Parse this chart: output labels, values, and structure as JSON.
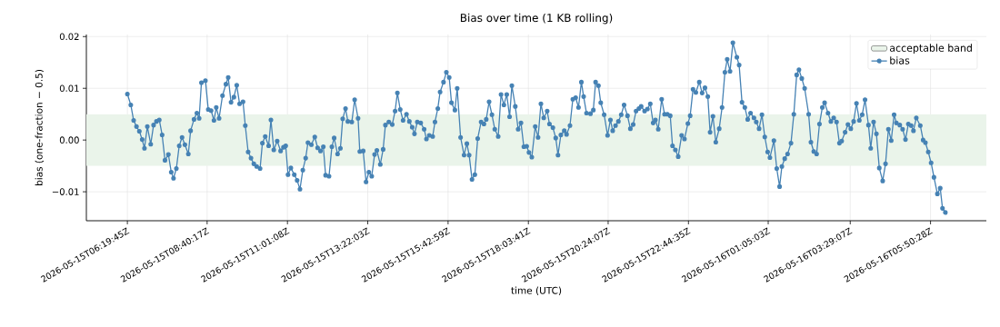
{
  "chart_data": {
    "type": "line",
    "title": "Bias over time (1 KB rolling)",
    "xlabel": "time (UTC)",
    "ylabel": "bias (one-fraction − 0.5)",
    "xlim": [
      "2026-05-15T05:08",
      "2026-05-16T07:28"
    ],
    "ylim": [
      -0.0156,
      0.0204
    ],
    "xticks": [
      {
        "value": "2026-05-15T06:20",
        "label": "2026-05-15T06:19:45Z"
      },
      {
        "value": "2026-05-15T08:40",
        "label": "2026-05-15T08:40:17Z"
      },
      {
        "value": "2026-05-15T11:01",
        "label": "2026-05-15T11:01:08Z"
      },
      {
        "value": "2026-05-15T13:22",
        "label": "2026-05-15T13:22:03Z"
      },
      {
        "value": "2026-05-15T15:43",
        "label": "2026-05-15T15:42:59Z"
      },
      {
        "value": "2026-05-15T18:04",
        "label": "2026-05-15T18:03:41Z"
      },
      {
        "value": "2026-05-15T20:24",
        "label": "2026-05-15T20:24:07Z"
      },
      {
        "value": "2026-05-15T22:45",
        "label": "2026-05-15T22:44:35Z"
      },
      {
        "value": "2026-05-16T01:05",
        "label": "2026-05-16T01:05:03Z"
      },
      {
        "value": "2026-05-16T03:29",
        "label": "2026-05-16T03:29:07Z"
      },
      {
        "value": "2026-05-16T05:50",
        "label": "2026-05-16T05:50:28Z"
      }
    ],
    "yticks": [
      {
        "value": -0.01,
        "label": "−0.01"
      },
      {
        "value": 0,
        "label": "0.00"
      },
      {
        "value": 0.01,
        "label": "0.01"
      },
      {
        "value": 0.02,
        "label": "0.02"
      }
    ],
    "grid": true,
    "legend": "top right",
    "marker": "circle",
    "line_style": "solid",
    "bands": [
      {
        "axis": "y",
        "from": -0.005,
        "to": 0.005,
        "label": "acceptable band",
        "color": "#eaf4ea"
      }
    ],
    "x": [
      "2026-05-15T06:20",
      "2026-05-15T06:26",
      "2026-05-15T06:31",
      "2026-05-15T06:36",
      "2026-05-15T06:41",
      "2026-05-15T06:46",
      "2026-05-15T06:50",
      "2026-05-15T06:55",
      "2026-05-15T07:01",
      "2026-05-15T07:06",
      "2026-05-15T07:11",
      "2026-05-15T07:16",
      "2026-05-15T07:21",
      "2026-05-15T07:26",
      "2026-05-15T07:32",
      "2026-05-15T07:37",
      "2026-05-15T07:41",
      "2026-05-15T07:46",
      "2026-05-15T07:51",
      "2026-05-15T07:56",
      "2026-05-15T08:01",
      "2026-05-15T08:07",
      "2026-05-15T08:11",
      "2026-05-15T08:17",
      "2026-05-15T08:22",
      "2026-05-15T08:26",
      "2026-05-15T08:30",
      "2026-05-15T08:37",
      "2026-05-15T08:42",
      "2026-05-15T08:47",
      "2026-05-15T08:52",
      "2026-05-15T08:56",
      "2026-05-15T09:01",
      "2026-05-15T09:07",
      "2026-05-15T09:13",
      "2026-05-15T09:17",
      "2026-05-15T09:22",
      "2026-05-15T09:27",
      "2026-05-15T09:32",
      "2026-05-15T09:37",
      "2026-05-15T09:43",
      "2026-05-15T09:47",
      "2026-05-15T09:52",
      "2026-05-15T09:57",
      "2026-05-15T10:02",
      "2026-05-15T10:07",
      "2026-05-15T10:13",
      "2026-05-15T10:17",
      "2026-05-15T10:22",
      "2026-05-15T10:28",
      "2026-05-15T10:32",
      "2026-05-15T10:37",
      "2026-05-15T10:43",
      "2026-05-15T10:49",
      "2026-05-15T10:54",
      "2026-05-15T10:58",
      "2026-05-15T11:02",
      "2026-05-15T11:07",
      "2026-05-15T11:13",
      "2026-05-15T11:18",
      "2026-05-15T11:23",
      "2026-05-15T11:28",
      "2026-05-15T11:33",
      "2026-05-15T11:37",
      "2026-05-15T11:43",
      "2026-05-15T11:49",
      "2026-05-15T11:54",
      "2026-05-15T11:59",
      "2026-05-15T12:04",
      "2026-05-15T12:08",
      "2026-05-15T12:14",
      "2026-05-15T12:19",
      "2026-05-15T12:23",
      "2026-05-15T12:29",
      "2026-05-15T12:34",
      "2026-05-15T12:38",
      "2026-05-15T12:43",
      "2026-05-15T12:47",
      "2026-05-15T12:54",
      "2026-05-15T12:59",
      "2026-05-15T13:05",
      "2026-05-15T13:08",
      "2026-05-15T13:14",
      "2026-05-15T13:19",
      "2026-05-15T13:24",
      "2026-05-15T13:29",
      "2026-05-15T13:34",
      "2026-05-15T13:38",
      "2026-05-15T13:44",
      "2026-05-15T13:49",
      "2026-05-15T13:53",
      "2026-05-15T13:59",
      "2026-05-15T14:05",
      "2026-05-15T14:10",
      "2026-05-15T14:14",
      "2026-05-15T14:19",
      "2026-05-15T14:24",
      "2026-05-15T14:30",
      "2026-05-15T14:35",
      "2026-05-15T14:40",
      "2026-05-15T14:44",
      "2026-05-15T14:49",
      "2026-05-15T14:55",
      "2026-05-15T15:01",
      "2026-05-15T15:05",
      "2026-05-15T15:10",
      "2026-05-15T15:16",
      "2026-05-15T15:20",
      "2026-05-15T15:25",
      "2026-05-15T15:29",
      "2026-05-15T15:35",
      "2026-05-15T15:40",
      "2026-05-15T15:45",
      "2026-05-15T15:49",
      "2026-05-15T15:55",
      "2026-05-15T15:59",
      "2026-05-15T16:05",
      "2026-05-15T16:11",
      "2026-05-15T16:16",
      "2026-05-15T16:20",
      "2026-05-15T16:25",
      "2026-05-15T16:30",
      "2026-05-15T16:35",
      "2026-05-15T16:41",
      "2026-05-15T16:46",
      "2026-05-15T16:50",
      "2026-05-15T16:55",
      "2026-05-15T17:00",
      "2026-05-15T17:05",
      "2026-05-15T17:11",
      "2026-05-15T17:16",
      "2026-05-15T17:21",
      "2026-05-15T17:26",
      "2026-05-15T17:31",
      "2026-05-15T17:35",
      "2026-05-15T17:41",
      "2026-05-15T17:46",
      "2026-05-15T17:51",
      "2026-05-15T17:56",
      "2026-05-15T18:01",
      "2026-05-15T18:05",
      "2026-05-15T18:10",
      "2026-05-15T18:16",
      "2026-05-15T18:21",
      "2026-05-15T18:26",
      "2026-05-15T18:31",
      "2026-05-15T18:37",
      "2026-05-15T18:41",
      "2026-05-15T18:47",
      "2026-05-15T18:52",
      "2026-05-15T18:56",
      "2026-05-15T19:01",
      "2026-05-15T19:07",
      "2026-05-15T19:11",
      "2026-05-15T19:17",
      "2026-05-15T19:22",
      "2026-05-15T19:27",
      "2026-05-15T19:32",
      "2026-05-15T19:37",
      "2026-05-15T19:41",
      "2026-05-15T19:46",
      "2026-05-15T19:53",
      "2026-05-15T19:58",
      "2026-05-15T20:02",
      "2026-05-15T20:07",
      "2026-05-15T20:11",
      "2026-05-15T20:17",
      "2026-05-15T20:23",
      "2026-05-15T20:28",
      "2026-05-15T20:32",
      "2026-05-15T20:37",
      "2026-05-15T20:42",
      "2026-05-15T20:47",
      "2026-05-15T20:52",
      "2026-05-15T20:58",
      "2026-05-15T21:03",
      "2026-05-15T21:08",
      "2026-05-15T21:13",
      "2026-05-15T21:18",
      "2026-05-15T21:22",
      "2026-05-15T21:28",
      "2026-05-15T21:33",
      "2026-05-15T21:38",
      "2026-05-15T21:43",
      "2026-05-15T21:47",
      "2026-05-15T21:52",
      "2026-05-15T21:58",
      "2026-05-15T22:03",
      "2026-05-15T22:08",
      "2026-05-15T22:13",
      "2026-05-15T22:17",
      "2026-05-15T22:22",
      "2026-05-15T22:27",
      "2026-05-15T22:33",
      "2026-05-15T22:38",
      "2026-05-15T22:44",
      "2026-05-15T22:48",
      "2026-05-15T22:53",
      "2026-05-15T22:58",
      "2026-05-15T23:04",
      "2026-05-15T23:09",
      "2026-05-15T23:14",
      "2026-05-15T23:19",
      "2026-05-15T23:23",
      "2026-05-15T23:28",
      "2026-05-15T23:33",
      "2026-05-15T23:39",
      "2026-05-15T23:44",
      "2026-05-15T23:49",
      "2026-05-15T23:53",
      "2026-05-15T23:58",
      "2026-05-16T00:03",
      "2026-05-16T00:10",
      "2026-05-16T00:14",
      "2026-05-16T00:19",
      "2026-05-16T00:24",
      "2026-05-16T00:29",
      "2026-05-16T00:34",
      "2026-05-16T00:40",
      "2026-05-16T00:44",
      "2026-05-16T00:49",
      "2026-05-16T00:54",
      "2026-05-16T00:59",
      "2026-05-16T01:04",
      "2026-05-16T01:08",
      "2026-05-16T01:15",
      "2026-05-16T01:20",
      "2026-05-16T01:25",
      "2026-05-16T01:29",
      "2026-05-16T01:34",
      "2026-05-16T01:39",
      "2026-05-16T01:45",
      "2026-05-16T01:50",
      "2026-05-16T01:55",
      "2026-05-16T01:59",
      "2026-05-16T02:04",
      "2026-05-16T02:09",
      "2026-05-16T02:16",
      "2026-05-16T02:20",
      "2026-05-16T02:25",
      "2026-05-16T02:30",
      "2026-05-16T02:35",
      "2026-05-16T02:40",
      "2026-05-16T02:44",
      "2026-05-16T02:50",
      "2026-05-16T02:55",
      "2026-05-16T03:00",
      "2026-05-16T03:05",
      "2026-05-16T03:10",
      "2026-05-16T03:14",
      "2026-05-16T03:20",
      "2026-05-16T03:25",
      "2026-05-16T03:30",
      "2026-05-16T03:35",
      "2026-05-16T03:40",
      "2026-05-16T03:45",
      "2026-05-16T03:50",
      "2026-05-16T03:55",
      "2026-05-16T04:01",
      "2026-05-16T04:05",
      "2026-05-16T04:10",
      "2026-05-16T04:15",
      "2026-05-16T04:20",
      "2026-05-16T04:26",
      "2026-05-16T04:31",
      "2026-05-16T04:36",
      "2026-05-16T04:41",
      "2026-05-16T04:46",
      "2026-05-16T04:50",
      "2026-05-16T04:56",
      "2026-05-16T05:01",
      "2026-05-16T05:06",
      "2026-05-16T05:11",
      "2026-05-16T05:16",
      "2026-05-16T05:20",
      "2026-05-16T05:25",
      "2026-05-16T05:32",
      "2026-05-16T05:37",
      "2026-05-16T05:41",
      "2026-05-16T05:46",
      "2026-05-16T05:51",
      "2026-05-16T05:56",
      "2026-05-16T06:02",
      "2026-05-16T06:07",
      "2026-05-16T06:11",
      "2026-05-16T06:16"
    ],
    "series": [
      {
        "name": "bias",
        "color": "#4682b4",
        "values": [
          0.0089,
          0.0068,
          0.0038,
          0.0026,
          0.0017,
          0.0001,
          -0.0016,
          0.0026,
          -0.0008,
          0.0029,
          0.0036,
          0.0039,
          0.001,
          -0.0039,
          -0.0028,
          -0.0062,
          -0.0074,
          -0.0055,
          -0.0011,
          0.0005,
          -0.0009,
          -0.0027,
          0.0018,
          0.004,
          0.0052,
          0.0042,
          0.0111,
          0.0115,
          0.0059,
          0.0057,
          0.0038,
          0.0063,
          0.0042,
          0.0086,
          0.0108,
          0.0121,
          0.0073,
          0.0083,
          0.0106,
          0.007,
          0.0074,
          0.0028,
          -0.0023,
          -0.0035,
          -0.0046,
          -0.0051,
          -0.0055,
          -0.0006,
          0.0007,
          -0.0011,
          0.0039,
          -0.0019,
          -0.0002,
          -0.0021,
          -0.0014,
          -0.0011,
          -0.0067,
          -0.0054,
          -0.0067,
          -0.0078,
          -0.0095,
          -0.0058,
          -0.0035,
          -0.0005,
          -0.0009,
          0.0006,
          -0.0015,
          -0.0021,
          -0.0013,
          -0.0068,
          -0.007,
          -0.0013,
          0.0004,
          -0.0027,
          -0.0016,
          0.0041,
          0.0061,
          0.0036,
          0.0035,
          0.0078,
          0.0042,
          -0.0022,
          -0.0021,
          -0.0081,
          -0.0062,
          -0.007,
          -0.0028,
          -0.002,
          -0.0047,
          -0.0018,
          0.0029,
          0.0035,
          0.003,
          0.0056,
          0.0091,
          0.0059,
          0.0038,
          0.005,
          0.0036,
          0.0025,
          0.0012,
          0.0035,
          0.0033,
          0.0021,
          0.0002,
          0.0009,
          0.0007,
          0.0035,
          0.0061,
          0.0093,
          0.0112,
          0.0131,
          0.0121,
          0.0072,
          0.0058,
          0.01,
          0.0005,
          -0.0029,
          -0.0007,
          -0.0029,
          -0.0076,
          -0.0067,
          0.0003,
          0.0035,
          0.0031,
          0.004,
          0.0074,
          0.0049,
          0.0021,
          0.0007,
          0.0088,
          0.0068,
          0.0088,
          0.0045,
          0.0105,
          0.0065,
          0.0021,
          0.0033,
          -0.0013,
          -0.0012,
          -0.0024,
          -0.0033,
          0.0026,
          0.0005,
          0.007,
          0.0043,
          0.0056,
          0.0031,
          0.0024,
          0.0004,
          -0.0029,
          0.001,
          0.0018,
          0.0011,
          0.0028,
          0.0079,
          0.0082,
          0.0063,
          0.0112,
          0.0084,
          0.0052,
          0.0051,
          0.0058,
          0.0112,
          0.0105,
          0.0072,
          0.0049,
          0.0009,
          0.0039,
          0.0018,
          0.0028,
          0.0036,
          0.0049,
          0.0068,
          0.0047,
          0.0022,
          0.003,
          0.0056,
          0.0061,
          0.0065,
          0.0056,
          0.006,
          0.007,
          0.0033,
          0.0039,
          0.0021,
          0.0079,
          0.005,
          0.005,
          0.0047,
          -0.0011,
          -0.0019,
          -0.0032,
          0.0009,
          0.0002,
          0.0032,
          0.0047,
          0.0098,
          0.0092,
          0.0112,
          0.0091,
          0.0101,
          0.0084,
          0.0015,
          0.0046,
          -0.0004,
          0.0022,
          0.0063,
          0.0131,
          0.0156,
          0.0133,
          0.0188,
          0.016,
          0.0145,
          0.0073,
          0.0063,
          0.004,
          0.0052,
          0.0043,
          0.0035,
          0.0022,
          0.0049,
          0.0006,
          -0.0023,
          -0.0034,
          -0.0001,
          -0.0055,
          -0.009,
          -0.0051,
          -0.0036,
          -0.0027,
          -0.0006,
          0.005,
          0.0126,
          0.0136,
          0.0119,
          0.01,
          0.005,
          -0.0004,
          -0.0022,
          -0.0027,
          0.0031,
          0.0063,
          0.0072,
          0.0052,
          0.0036,
          0.0043,
          0.0035,
          -0.0006,
          -0.0002,
          0.0015,
          0.003,
          0.0022,
          0.0036,
          0.0071,
          0.0038,
          0.0049,
          0.0078,
          0.0029,
          -0.0016,
          0.0035,
          0.0012,
          -0.0054,
          -0.0079,
          -0.0046,
          0.0021,
          -0.0001,
          0.0049,
          0.0033,
          0.0029,
          0.0021,
          0.0001,
          0.0031,
          0.0028,
          0.0018,
          0.0043,
          0.0028,
          0.0,
          -0.0005,
          -0.0023,
          -0.0044,
          -0.0072,
          -0.0104,
          -0.0093,
          -0.0132,
          -0.014
        ]
      }
    ]
  }
}
